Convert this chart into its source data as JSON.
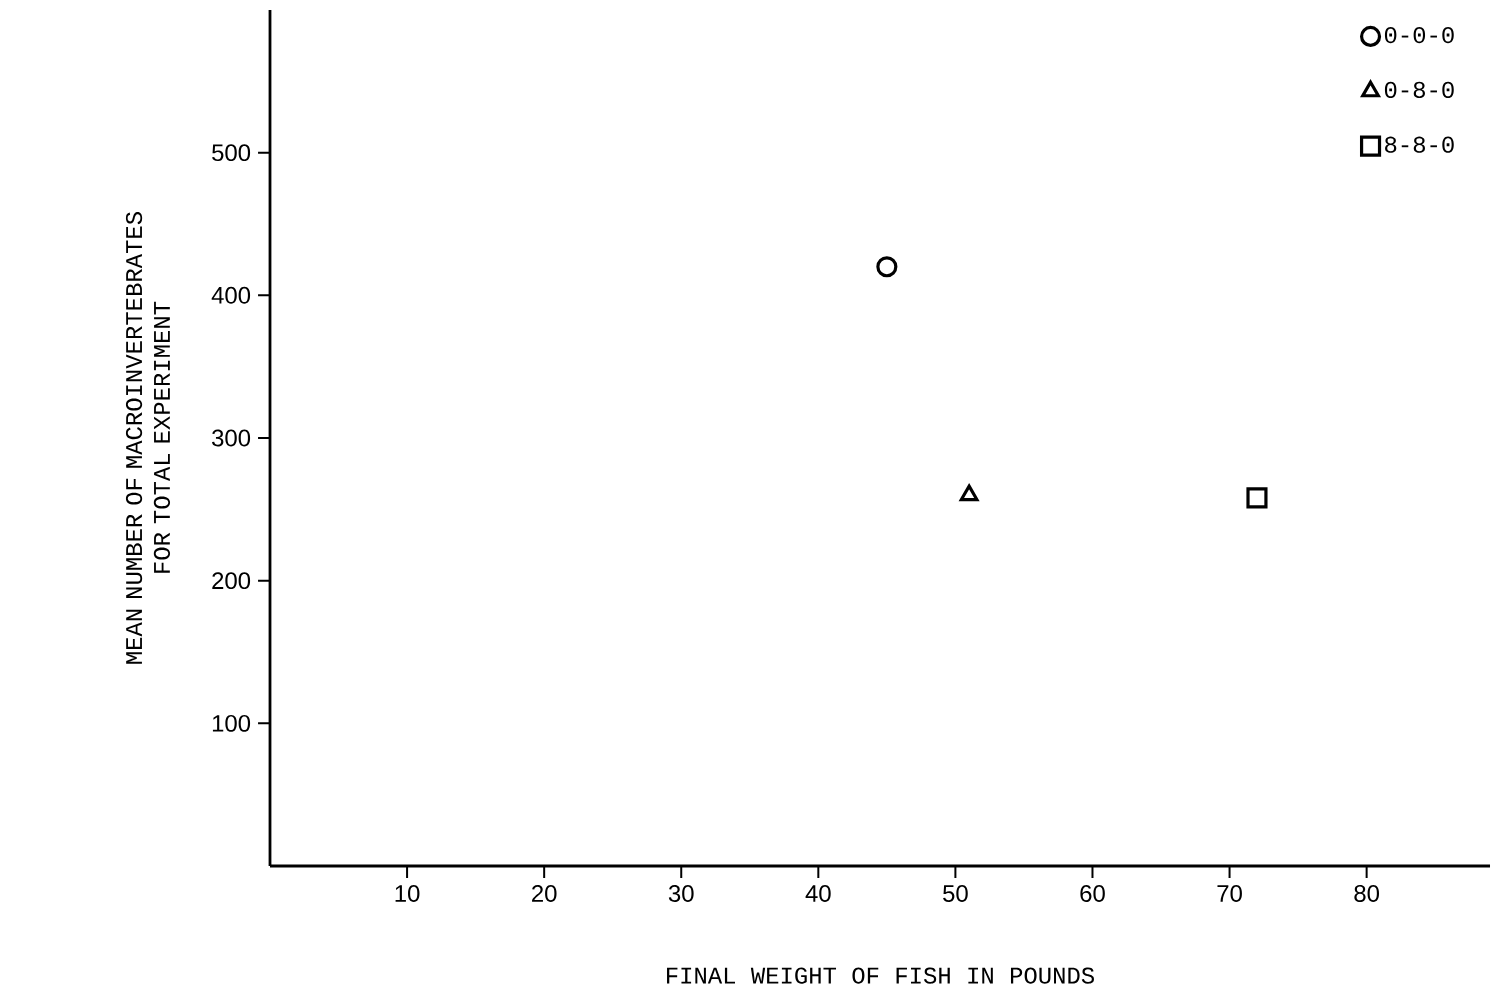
{
  "chart_data": {
    "type": "scatter",
    "xlabel": "FINAL WEIGHT OF FISH IN POUNDS",
    "ylabel": "MEAN NUMBER OF MACROINVERTEBRATES FOR TOTAL EXPERIMENT",
    "xlim": [
      0,
      89
    ],
    "ylim": [
      0,
      600
    ],
    "xticks": [
      10,
      20,
      30,
      40,
      50,
      60,
      70,
      80
    ],
    "yticks": [
      100,
      200,
      300,
      400,
      500
    ],
    "grid": false,
    "legend": "top right",
    "series": [
      {
        "name": "0-0-0",
        "color": "#000000",
        "marker": "circle",
        "x": [
          45
        ],
        "values": [
          420
        ]
      },
      {
        "name": "0-8-0",
        "color": "#000000",
        "marker": "triangle",
        "x": [
          51
        ],
        "values": [
          260
        ]
      },
      {
        "name": "8-8-0",
        "color": "#000000",
        "marker": "square",
        "x": [
          72
        ],
        "values": [
          258
        ]
      }
    ]
  }
}
